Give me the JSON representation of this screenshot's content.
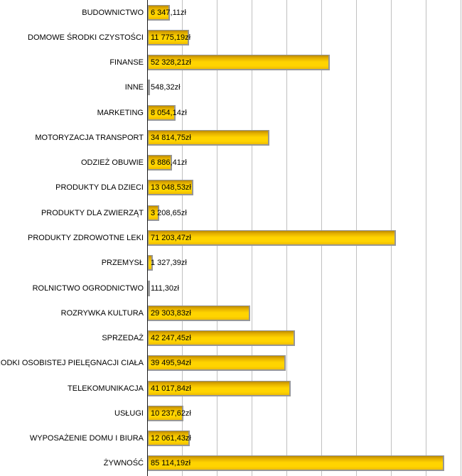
{
  "chart_data": {
    "type": "bar",
    "orientation": "horizontal",
    "title": "",
    "xlabel": "",
    "ylabel": "",
    "xlim": [
      0,
      90000
    ],
    "gridline_interval": 10000,
    "grid": true,
    "legend": false,
    "currency_suffix": "zł",
    "bar_color": "#ffd400",
    "bar_border_color": "#979797",
    "gridline_color": "#c0c0c0",
    "axis_color": "#1a1a1a",
    "categories": [
      "BUDOWNICTWO",
      "DOMOWE ŚRODKI CZYSTOŚCI",
      "FINANSE",
      "INNE",
      "MARKETING",
      "MOTORYZACJA TRANSPORT",
      "ODZIEŻ OBUWIE",
      "PRODUKTY DLA DZIECI",
      "PRODUKTY DLA ZWIERZĄT",
      "PRODUKTY ZDROWOTNE LEKI",
      "PRZEMYSŁ",
      "ROLNICTWO OGRODNICTWO",
      "ROZRYWKA KULTURA",
      "SPRZEDAŻ",
      "ŚRODKI OSOBISTEJ PIELĘGNACJI CIAŁA",
      "TELEKOMUNIKACJA",
      "USŁUGI",
      "WYPOSAŻENIE DOMU I BIURA",
      "ŻYWNOŚĆ"
    ],
    "values": [
      6347.11,
      11775.19,
      52328.21,
      548.32,
      8054.14,
      34814.75,
      6886.41,
      13048.53,
      3208.65,
      71203.47,
      1327.39,
      111.3,
      29303.83,
      42247.45,
      39495.94,
      41017.84,
      10237.62,
      12061.43,
      85114.19
    ],
    "value_labels": [
      "6 347,11zł",
      "11 775,19zł",
      "52 328,21zł",
      "548,32zł",
      "8 054,14zł",
      "34 814,75zł",
      "6 886,41zł",
      "13 048,53zł",
      "3 208,65zł",
      "71 203,47zł",
      "1 327,39zł",
      "111,30zł",
      "29 303,83zł",
      "42 247,45zł",
      "39 495,94zł",
      "41 017,84zł",
      "10 237,62zł",
      "12 061,43zł",
      "85 114,19zł"
    ]
  }
}
